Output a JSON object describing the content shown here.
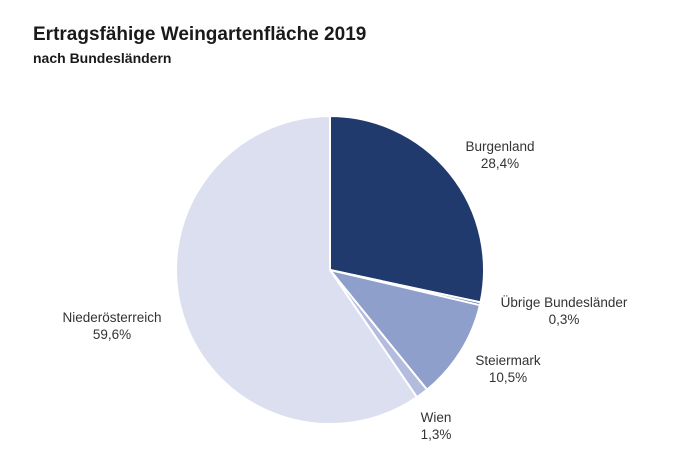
{
  "chart_data": {
    "type": "pie",
    "title": "Ertragsfähige Weingartenfläche 2019",
    "subtitle": "nach Bundesländern",
    "slices": [
      {
        "label": "Burgenland",
        "value": 28.4,
        "value_label": "28,4%",
        "color": "#213a6e"
      },
      {
        "label": "Übrige Bundesländer",
        "value": 0.3,
        "value_label": "0,3%",
        "color": "#5a6ea8"
      },
      {
        "label": "Steiermark",
        "value": 10.5,
        "value_label": "10,5%",
        "color": "#8f9fcc"
      },
      {
        "label": "Wien",
        "value": 1.3,
        "value_label": "1,3%",
        "color": "#b3bcdd"
      },
      {
        "label": "Niederösterreich",
        "value": 59.6,
        "value_label": "59,6%",
        "color": "#dcdff0"
      }
    ],
    "start": "top",
    "direction": "clockwise"
  }
}
